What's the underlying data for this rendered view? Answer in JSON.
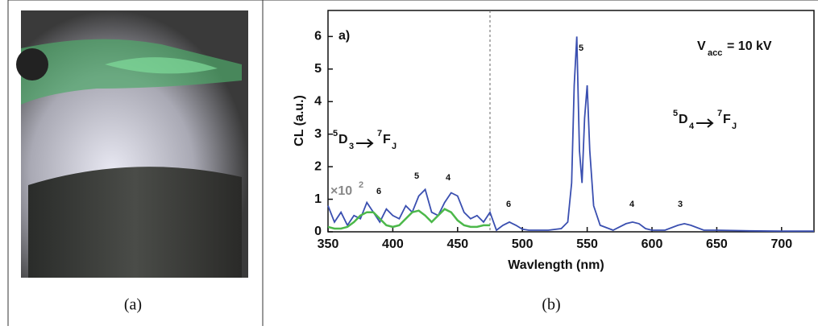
{
  "captions": {
    "a": "(a)",
    "b": "(b)"
  },
  "chart_data": {
    "type": "line",
    "x_label": "Wavlength (nm)",
    "y_label": "CL (a.u.)",
    "panel_label": "a)",
    "xlim": [
      350,
      725
    ],
    "ylim": [
      0,
      6.8
    ],
    "xticks": [
      350,
      400,
      450,
      500,
      550,
      600,
      650,
      700
    ],
    "yticks": [
      0,
      1,
      2,
      3,
      4,
      5,
      6
    ],
    "divider_x": 475,
    "series": [
      {
        "color": "#3a4fb0",
        "x": [
          350,
          355,
          360,
          365,
          370,
          375,
          380,
          385,
          390,
          395,
          400,
          405,
          410,
          415,
          420,
          425,
          430,
          435,
          440,
          445,
          450,
          455,
          460,
          465,
          470,
          475,
          480,
          485,
          490,
          495,
          500,
          505,
          510,
          520,
          530,
          535,
          538,
          540,
          542,
          544,
          546,
          548,
          550,
          552,
          555,
          560,
          570,
          580,
          585,
          590,
          595,
          600,
          610,
          620,
          625,
          630,
          640,
          650,
          675,
          700,
          725
        ],
        "values": [
          0.8,
          0.3,
          0.6,
          0.2,
          0.5,
          0.4,
          0.9,
          0.6,
          0.3,
          0.7,
          0.5,
          0.4,
          0.8,
          0.6,
          1.1,
          1.3,
          0.6,
          0.5,
          0.9,
          1.2,
          1.1,
          0.6,
          0.4,
          0.5,
          0.3,
          0.6,
          0.05,
          0.2,
          0.3,
          0.2,
          0.08,
          0.05,
          0.05,
          0.05,
          0.1,
          0.3,
          1.5,
          4.5,
          6.0,
          2.5,
          1.5,
          3.5,
          4.5,
          2.5,
          0.8,
          0.2,
          0.05,
          0.25,
          0.3,
          0.25,
          0.1,
          0.05,
          0.05,
          0.2,
          0.25,
          0.2,
          0.05,
          0.05,
          0.03,
          0.02,
          0.02
        ]
      },
      {
        "color": "#4cb84a",
        "x": [
          350,
          355,
          360,
          365,
          370,
          375,
          380,
          385,
          390,
          395,
          400,
          405,
          410,
          415,
          420,
          425,
          430,
          435,
          440,
          445,
          450,
          455,
          460,
          465,
          470,
          475
        ],
        "values": [
          0.15,
          0.1,
          0.1,
          0.15,
          0.3,
          0.5,
          0.6,
          0.6,
          0.4,
          0.2,
          0.15,
          0.2,
          0.4,
          0.6,
          0.65,
          0.5,
          0.3,
          0.5,
          0.7,
          0.6,
          0.35,
          0.2,
          0.15,
          0.15,
          0.2,
          0.2
        ]
      }
    ],
    "annotations": {
      "vacc": {
        "main": "V",
        "sub": "acc",
        "rest": "= 10 kV"
      },
      "scale": {
        "main": "×10",
        "sup": "2"
      },
      "left_transition": {
        "sup1": "5",
        "d": "D",
        "sub1": "3",
        "sup2": "7",
        "f": "F",
        "sub2": "J"
      },
      "right_transition": {
        "sup1": "5",
        "d": "D",
        "sub1": "4",
        "sup2": "7",
        "f": "F",
        "sub2": "J"
      },
      "left_peaks": [
        "6",
        "5",
        "4"
      ],
      "right_peaks": [
        "5",
        "6",
        "4",
        "3"
      ]
    }
  }
}
